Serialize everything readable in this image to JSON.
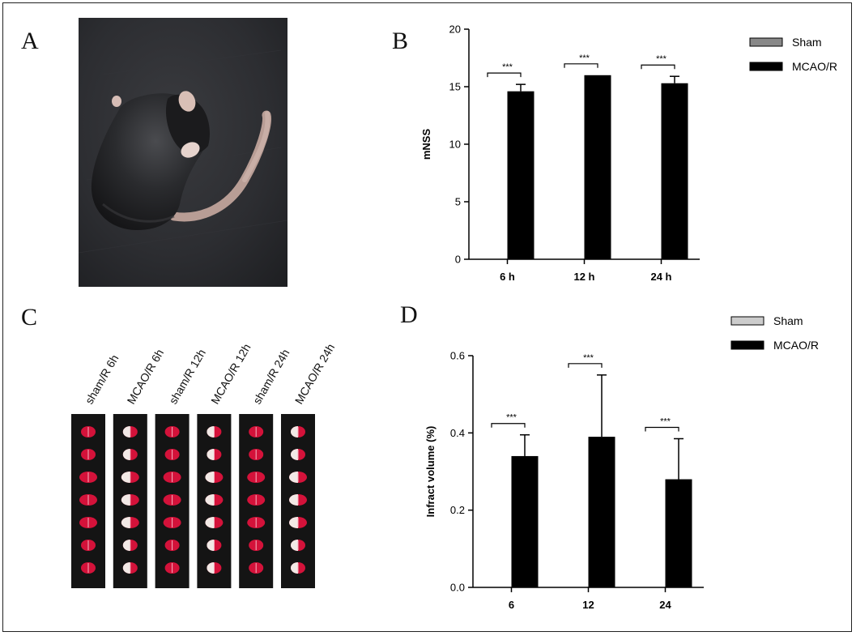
{
  "panels": {
    "a_label": "A",
    "b_label": "B",
    "c_label": "C",
    "d_label": "D"
  },
  "photo": {
    "subject": "mouse-after-MCAO-R"
  },
  "ttc": {
    "strips": [
      {
        "label": "sham/R 6h",
        "type": "sham"
      },
      {
        "label": "MCAO/R 6h",
        "type": "mcao"
      },
      {
        "label": "sham/R 12h",
        "type": "sham"
      },
      {
        "label": "MCAO/R 12h",
        "type": "mcao"
      },
      {
        "label": "sham/R 24h",
        "type": "sham"
      },
      {
        "label": "MCAO/R 24h",
        "type": "mcao"
      }
    ],
    "slices_per_strip": 7,
    "colors": {
      "viable": "#d4123a",
      "infarct": "#f2e9e6",
      "background": "#141414"
    }
  },
  "chart_data": [
    {
      "id": "B",
      "type": "bar",
      "categories": [
        "6 h",
        "12 h",
        "24 h"
      ],
      "series": [
        {
          "name": "Sham",
          "values": [
            0,
            0,
            0
          ],
          "errors": [
            0,
            0,
            0
          ],
          "color": "#888888"
        },
        {
          "name": "MCAO/R",
          "values": [
            14.6,
            16.0,
            15.3
          ],
          "errors": [
            0.6,
            0,
            0.6
          ],
          "color": "#000000"
        }
      ],
      "title": "",
      "xlabel": "",
      "ylabel": "mNSS",
      "ylim": [
        0,
        20
      ],
      "yticks": [
        "0",
        "5",
        "10",
        "15",
        "20"
      ],
      "significance": [
        "***",
        "***",
        "***"
      ],
      "legend_position": "top-right",
      "grid": false
    },
    {
      "id": "D",
      "type": "bar",
      "categories": [
        "6",
        "12",
        "24"
      ],
      "series": [
        {
          "name": "Sham",
          "values": [
            0,
            0,
            0
          ],
          "errors": [
            0,
            0,
            0
          ],
          "color": "#cccccc"
        },
        {
          "name": "MCAO/R",
          "values": [
            0.34,
            0.39,
            0.28
          ],
          "errors": [
            0.055,
            0.16,
            0.105
          ],
          "color": "#000000"
        }
      ],
      "title": "",
      "xlabel": "",
      "ylabel": "Infract volume (%)",
      "ylim": [
        0,
        0.6
      ],
      "yticks": [
        "0.0",
        "0.2",
        "0.4",
        "0.6"
      ],
      "significance": [
        "***",
        "***",
        "***"
      ],
      "legend_position": "top-right",
      "grid": false
    }
  ]
}
